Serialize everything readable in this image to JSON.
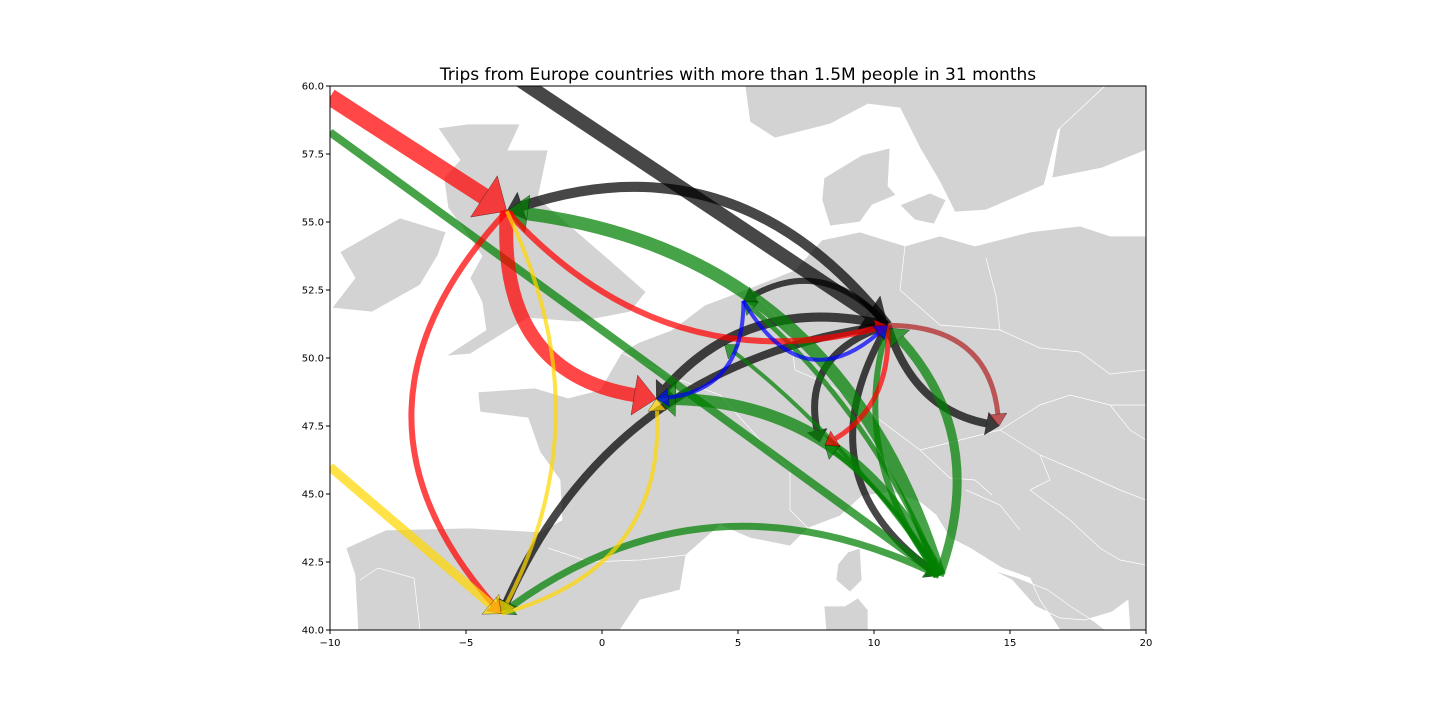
{
  "chart_data": {
    "type": "flow_map",
    "title": "Trips from Europe countries with more than 1.5M people in 31 months",
    "xlim": [
      -10,
      20
    ],
    "ylim": [
      40,
      60
    ],
    "x_ticks": [
      -10,
      -5,
      0,
      5,
      10,
      15,
      20
    ],
    "y_ticks": [
      40.0,
      42.5,
      45.0,
      47.5,
      50.0,
      52.5,
      55.0,
      57.5,
      60.0
    ],
    "x_tick_labels": [
      "−10",
      "−5",
      "0",
      "5",
      "10",
      "15",
      "20"
    ],
    "y_tick_labels": [
      "40.0",
      "42.5",
      "45.0",
      "47.5",
      "50.0",
      "52.5",
      "55.0",
      "57.5",
      "60.0"
    ],
    "colors": {
      "black": "#000000",
      "green": "#008000",
      "red": "#ff0000",
      "gold": "#ffd700",
      "blue": "#0000ff",
      "brown": "#b22222",
      "land": "#d3d3d3",
      "border": "#ffffff"
    },
    "flows": [
      {
        "color": "black",
        "from": [
          -3.0,
          60.2
        ],
        "to": [
          10.5,
          51.2
        ],
        "curve": 0,
        "width": 14
      },
      {
        "color": "black",
        "from": [
          10.5,
          51.2
        ],
        "to": [
          -3.5,
          55.4
        ],
        "curve": 0.35,
        "width": 10
      },
      {
        "color": "black",
        "from": [
          10.5,
          51.2
        ],
        "to": [
          5.2,
          52.1
        ],
        "curve": 0.4,
        "width": 6
      },
      {
        "color": "black",
        "from": [
          10.5,
          51.2
        ],
        "to": [
          2.0,
          48.5
        ],
        "curve": 0.3,
        "width": 9
      },
      {
        "color": "black",
        "from": [
          10.5,
          51.2
        ],
        "to": [
          -3.7,
          40.6
        ],
        "curve": 0.28,
        "width": 8
      },
      {
        "color": "black",
        "from": [
          10.5,
          51.2
        ],
        "to": [
          8.0,
          46.9
        ],
        "curve": 0.45,
        "width": 7
      },
      {
        "color": "black",
        "from": [
          10.5,
          51.2
        ],
        "to": [
          14.6,
          47.5
        ],
        "curve": 0.3,
        "width": 8
      },
      {
        "color": "black",
        "from": [
          10.5,
          51.2
        ],
        "to": [
          12.4,
          42.0
        ],
        "curve": 0.45,
        "width": 7
      },
      {
        "color": "green",
        "from": [
          -10.0,
          58.3
        ],
        "to": [
          12.4,
          42.0
        ],
        "curve": 0,
        "width": 8
      },
      {
        "color": "green",
        "from": [
          12.4,
          42.0
        ],
        "to": [
          -3.5,
          55.4
        ],
        "curve": 0.32,
        "width": 13
      },
      {
        "color": "green",
        "from": [
          12.4,
          42.0
        ],
        "to": [
          2.0,
          48.5
        ],
        "curve": 0.3,
        "width": 12
      },
      {
        "color": "green",
        "from": [
          12.4,
          42.0
        ],
        "to": [
          5.2,
          52.1
        ],
        "curve": 0.12,
        "width": 5
      },
      {
        "color": "green",
        "from": [
          12.4,
          42.0
        ],
        "to": [
          4.5,
          50.5
        ],
        "curve": 0.08,
        "width": 4
      },
      {
        "color": "green",
        "from": [
          12.4,
          42.0
        ],
        "to": [
          10.5,
          51.2
        ],
        "curve": -0.25,
        "width": 6
      },
      {
        "color": "green",
        "from": [
          12.4,
          42.0
        ],
        "to": [
          8.2,
          46.8
        ],
        "curve": 0.1,
        "width": 4
      },
      {
        "color": "green",
        "from": [
          12.4,
          42.0
        ],
        "to": [
          -3.7,
          40.6
        ],
        "curve": 0.3,
        "width": 7
      },
      {
        "color": "green",
        "from": [
          12.4,
          42.0
        ],
        "to": [
          10.6,
          51.1
        ],
        "curve": 0.3,
        "width": 9
      },
      {
        "color": "red",
        "from": [
          -10.0,
          59.6
        ],
        "to": [
          -3.5,
          55.4
        ],
        "curve": 0,
        "width": 17
      },
      {
        "color": "red",
        "from": [
          -3.5,
          55.4
        ],
        "to": [
          2.0,
          48.5
        ],
        "curve": 0.45,
        "width": 14
      },
      {
        "color": "red",
        "from": [
          -3.5,
          55.4
        ],
        "to": [
          10.5,
          51.2
        ],
        "curve": 0.3,
        "width": 6
      },
      {
        "color": "red",
        "from": [
          -3.5,
          55.4
        ],
        "to": [
          -3.7,
          40.6
        ],
        "curve": 0.45,
        "width": 6
      },
      {
        "color": "red",
        "from": [
          10.5,
          51.2
        ],
        "to": [
          8.2,
          46.8
        ],
        "curve": -0.3,
        "width": 5
      },
      {
        "color": "gold",
        "from": [
          -10.0,
          46.0
        ],
        "to": [
          -3.7,
          40.6
        ],
        "curve": 0,
        "width": 9
      },
      {
        "color": "gold",
        "from": [
          -3.5,
          55.4
        ],
        "to": [
          -3.7,
          40.6
        ],
        "curve": -0.25,
        "width": 4
      },
      {
        "color": "gold",
        "from": [
          -3.7,
          40.6
        ],
        "to": [
          2.0,
          48.5
        ],
        "curve": 0.4,
        "width": 4
      },
      {
        "color": "blue",
        "from": [
          5.2,
          52.1
        ],
        "to": [
          2.0,
          48.5
        ],
        "curve": -0.45,
        "width": 4
      },
      {
        "color": "blue",
        "from": [
          5.2,
          52.1
        ],
        "to": [
          10.5,
          51.2
        ],
        "curve": 0.6,
        "width": 4
      },
      {
        "color": "brown",
        "from": [
          10.5,
          51.2
        ],
        "to": [
          14.6,
          47.5
        ],
        "curve": -0.45,
        "width": 5
      }
    ]
  }
}
